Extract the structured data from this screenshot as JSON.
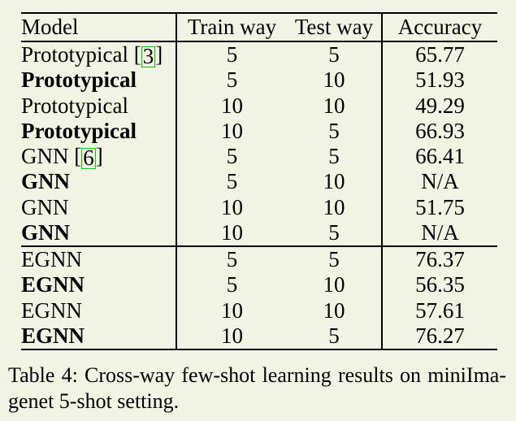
{
  "colors": {
    "page_background": "#f2f4e3",
    "ink": "#000000",
    "citation_box": "#00cc00"
  },
  "table": {
    "columns": {
      "model": "Model",
      "train_way": "Train way",
      "test_way": "Test way",
      "accuracy": "Accuracy"
    },
    "citation_bracket_open": "[",
    "citation_bracket_close": "]",
    "rows": [
      {
        "model": "Prototypical",
        "cite": "3",
        "bold": false,
        "train": "5",
        "test": "5",
        "accuracy": "65.77",
        "section_start": false
      },
      {
        "model": "Prototypical",
        "cite": null,
        "bold": true,
        "train": "5",
        "test": "10",
        "accuracy": "51.93",
        "section_start": false
      },
      {
        "model": "Prototypical",
        "cite": null,
        "bold": false,
        "train": "10",
        "test": "10",
        "accuracy": "49.29",
        "section_start": false
      },
      {
        "model": "Prototypical",
        "cite": null,
        "bold": true,
        "train": "10",
        "test": "5",
        "accuracy": "66.93",
        "section_start": false
      },
      {
        "model": "GNN",
        "cite": "6",
        "bold": false,
        "train": "5",
        "test": "5",
        "accuracy": "66.41",
        "section_start": false
      },
      {
        "model": "GNN",
        "cite": null,
        "bold": true,
        "train": "5",
        "test": "10",
        "accuracy": "N/A",
        "section_start": false
      },
      {
        "model": "GNN",
        "cite": null,
        "bold": false,
        "train": "10",
        "test": "10",
        "accuracy": "51.75",
        "section_start": false
      },
      {
        "model": "GNN",
        "cite": null,
        "bold": true,
        "train": "10",
        "test": "5",
        "accuracy": "N/A",
        "section_start": false
      },
      {
        "model": "EGNN",
        "cite": null,
        "bold": false,
        "train": "5",
        "test": "5",
        "accuracy": "76.37",
        "section_start": true
      },
      {
        "model": "EGNN",
        "cite": null,
        "bold": true,
        "train": "5",
        "test": "10",
        "accuracy": "56.35",
        "section_start": false
      },
      {
        "model": "EGNN",
        "cite": null,
        "bold": false,
        "train": "10",
        "test": "10",
        "accuracy": "57.61",
        "section_start": false
      },
      {
        "model": "EGNN",
        "cite": null,
        "bold": true,
        "train": "10",
        "test": "5",
        "accuracy": "76.27",
        "section_start": false
      }
    ]
  },
  "caption": {
    "line1": "Table 4: Cross-way few-shot learning results on miniIma-",
    "line2": "genet 5-shot setting."
  }
}
